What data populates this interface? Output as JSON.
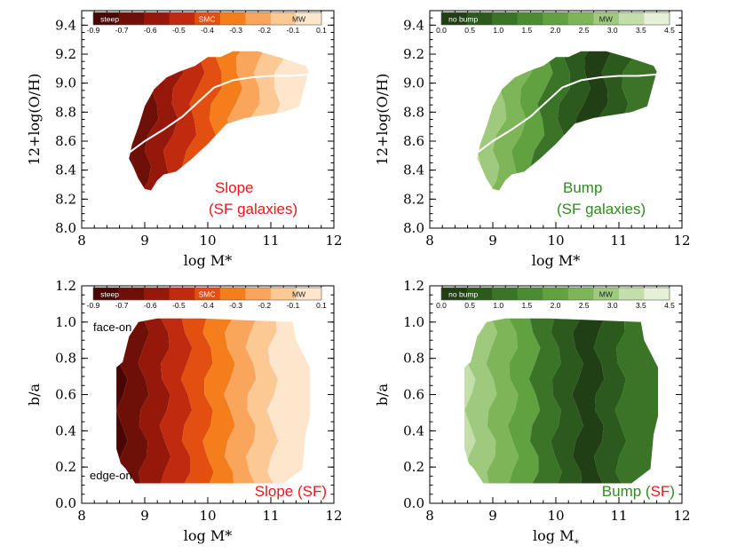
{
  "figure": {
    "colors": {
      "slope": [
        "#4a0604",
        "#6e0f08",
        "#96180b",
        "#c02a0e",
        "#e24f10",
        "#f57e1c",
        "#faa55c",
        "#fcc995",
        "#fde6cb"
      ],
      "bump": [
        "#203f14",
        "#2c5a1c",
        "#3a7426",
        "#4b8b31",
        "#62a140",
        "#7db558",
        "#9fca7e",
        "#c4dea9",
        "#e6f0d6"
      ],
      "red_text": "#e8181a",
      "green_text": "#2e8b1e",
      "trend_line": "#ffffff"
    }
  },
  "chart_data": [
    {
      "id": "top-left",
      "type": "contour",
      "title_line1": "Slope",
      "title_line2": "(SF galaxies)",
      "title_color": "red",
      "xlabel": "log M*",
      "ylabel": "12+log(O/H)",
      "xlim": [
        8,
        12
      ],
      "ylim": [
        8.0,
        9.5
      ],
      "xticks": [
        "8",
        "9",
        "10",
        "11",
        "12"
      ],
      "yticks": [
        "8.0",
        "8.2",
        "8.4",
        "8.6",
        "8.8",
        "9.0",
        "9.2",
        "9.4"
      ],
      "colorbar": {
        "palette": "slope",
        "inner_labels": [
          "steep",
          "SMC",
          "MW"
        ],
        "ticks": [
          "-0.9",
          "-0.7",
          "-0.6",
          "-0.5",
          "-0.4",
          "-0.3",
          "-0.2",
          "-0.1",
          "0.1"
        ]
      },
      "trend_line": {
        "x": [
          8.75,
          9.0,
          9.3,
          9.6,
          9.85,
          10.1,
          10.4,
          10.7,
          11.0,
          11.3,
          11.6
        ],
        "y": [
          8.52,
          8.6,
          8.68,
          8.77,
          8.87,
          8.97,
          9.02,
          9.04,
          9.05,
          9.05,
          9.06
        ]
      },
      "region": {
        "x": [
          8.75,
          8.82,
          8.9,
          9.0,
          9.1,
          9.2,
          9.3,
          9.5,
          9.75,
          10.0,
          10.3,
          10.6,
          10.9,
          11.2,
          11.45,
          11.6,
          11.55,
          11.2,
          10.8,
          10.4,
          10.2,
          10.0,
          9.8,
          9.55,
          9.35,
          9.15,
          9.0,
          8.9,
          8.8
        ],
        "y": [
          8.48,
          8.42,
          8.34,
          8.27,
          8.26,
          8.33,
          8.37,
          8.39,
          8.48,
          8.58,
          8.72,
          8.76,
          8.78,
          8.8,
          8.84,
          9.08,
          9.12,
          9.17,
          9.22,
          9.22,
          9.18,
          9.18,
          9.12,
          9.08,
          9.04,
          8.96,
          8.84,
          8.7,
          8.58
        ]
      }
    },
    {
      "id": "top-right",
      "type": "contour",
      "title_line1": "Bump",
      "title_line2": "(SF galaxies)",
      "title_color": "green",
      "xlabel": "log M*",
      "ylabel": "12+log(O/H)",
      "xlim": [
        8,
        12
      ],
      "ylim": [
        8.0,
        9.5
      ],
      "xticks": [
        "8",
        "9",
        "10",
        "11",
        "12"
      ],
      "yticks": [
        "8.0",
        "8.2",
        "8.4",
        "8.6",
        "8.8",
        "9.0",
        "9.2",
        "9.4"
      ],
      "colorbar": {
        "palette": "bump",
        "inner_labels": [
          "no bump",
          "MW"
        ],
        "ticks": [
          "0.0",
          "0.5",
          "1.0",
          "1.5",
          "2.0",
          "2.5",
          "3.0",
          "3.5",
          "4.5"
        ]
      },
      "trend_line": {
        "x": [
          8.75,
          9.0,
          9.3,
          9.6,
          9.85,
          10.1,
          10.4,
          10.7,
          11.0,
          11.3,
          11.6
        ],
        "y": [
          8.52,
          8.6,
          8.68,
          8.77,
          8.87,
          8.97,
          9.02,
          9.04,
          9.05,
          9.05,
          9.06
        ]
      },
      "region": {
        "x": [
          8.75,
          8.82,
          8.9,
          9.0,
          9.1,
          9.2,
          9.3,
          9.5,
          9.75,
          10.0,
          10.3,
          10.6,
          10.9,
          11.2,
          11.45,
          11.6,
          11.55,
          11.2,
          10.8,
          10.4,
          10.2,
          10.0,
          9.8,
          9.55,
          9.35,
          9.15,
          9.0,
          8.9,
          8.8
        ],
        "y": [
          8.48,
          8.42,
          8.34,
          8.27,
          8.26,
          8.33,
          8.37,
          8.39,
          8.48,
          8.58,
          8.72,
          8.76,
          8.78,
          8.8,
          8.84,
          9.08,
          9.12,
          9.17,
          9.22,
          9.22,
          9.18,
          9.18,
          9.12,
          9.08,
          9.04,
          8.96,
          8.84,
          8.7,
          8.58
        ]
      }
    },
    {
      "id": "bottom-left",
      "type": "contour",
      "title_line1": "Slope (SF)",
      "title_color": "red",
      "annotations": [
        "face-on",
        "edge-on"
      ],
      "xlabel": "log M*",
      "ylabel": "b/a",
      "xlim": [
        8,
        12
      ],
      "ylim": [
        0.0,
        1.2
      ],
      "xticks": [
        "8",
        "9",
        "10",
        "11",
        "12"
      ],
      "yticks": [
        "0.0",
        "0.2",
        "0.4",
        "0.6",
        "0.8",
        "1.0",
        "1.2"
      ],
      "colorbar": {
        "palette": "slope",
        "inner_labels": [
          "steep",
          "SMC",
          "MW"
        ],
        "ticks": [
          "-0.9",
          "-0.7",
          "-0.6",
          "-0.5",
          "-0.4",
          "-0.3",
          "-0.2",
          "-0.1",
          "0.1"
        ]
      },
      "region": {
        "x": [
          8.55,
          8.55,
          8.65,
          8.75,
          8.9,
          9.2,
          9.9,
          11.35,
          11.4,
          11.62,
          11.62,
          11.55,
          11.5,
          11.2,
          8.85,
          8.7,
          8.62
        ],
        "y": [
          0.3,
          0.75,
          0.78,
          0.92,
          1.0,
          1.02,
          1.02,
          1.0,
          0.9,
          0.75,
          0.48,
          0.38,
          0.19,
          0.11,
          0.11,
          0.19,
          0.22
        ]
      }
    },
    {
      "id": "bottom-right",
      "type": "contour",
      "title_part1": "Bump (",
      "title_part2": "SF",
      "title_part3": ")",
      "xlabel": "log M",
      "xlabel_sub": "*",
      "ylabel": "b/a",
      "xlim": [
        8,
        12
      ],
      "ylim": [
        0.0,
        1.2
      ],
      "xticks": [
        "8",
        "9",
        "10",
        "11",
        "12"
      ],
      "yticks": [
        "0.0",
        "0.2",
        "0.4",
        "0.6",
        "0.8",
        "1.0",
        "1.2"
      ],
      "colorbar": {
        "palette": "bump",
        "inner_labels": [
          "no bump",
          "MW"
        ],
        "ticks": [
          "0.0",
          "0.5",
          "1.0",
          "1.5",
          "2.0",
          "2.5",
          "3.0",
          "3.5",
          "4.5"
        ]
      },
      "region": {
        "x": [
          8.55,
          8.55,
          8.65,
          8.75,
          8.9,
          9.2,
          9.9,
          11.35,
          11.4,
          11.62,
          11.62,
          11.55,
          11.5,
          11.2,
          8.85,
          8.7,
          8.62
        ],
        "y": [
          0.3,
          0.75,
          0.78,
          0.92,
          1.0,
          1.02,
          1.02,
          1.0,
          0.9,
          0.75,
          0.48,
          0.38,
          0.19,
          0.11,
          0.11,
          0.19,
          0.22
        ]
      }
    }
  ]
}
